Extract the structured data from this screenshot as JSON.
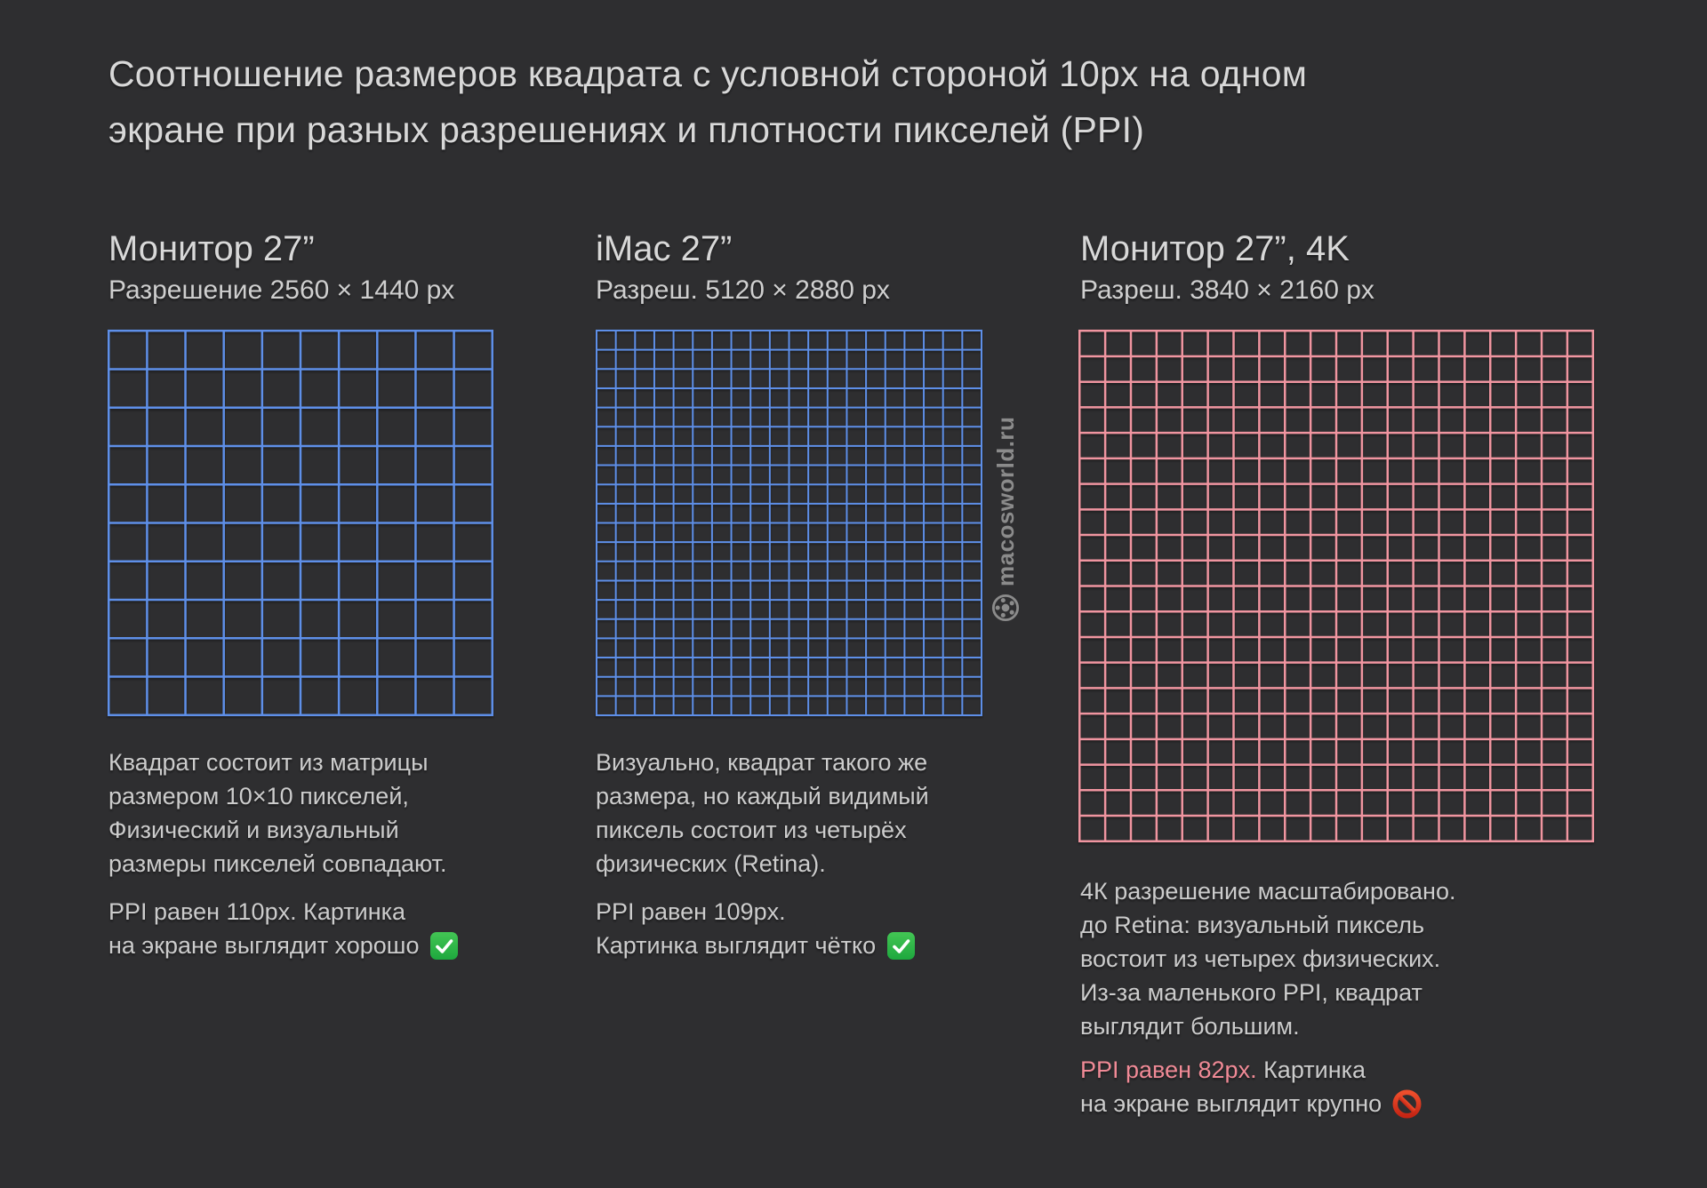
{
  "background_color": "#2e2e30",
  "title": {
    "text": "Соотношение размеров квадрата с условной стороной 10px на одном\nэкране при разных разрешениях и плотности пикселей (PPI)",
    "color": "#d8d8d8"
  },
  "watermark": {
    "text": "macosworld.ru",
    "icon": "soccer-ball-icon",
    "color": "#8b8b8b"
  },
  "text_colors": {
    "heading": "#d8d8d8",
    "body": "#cccccc",
    "ppi_highlight": "#f08a96"
  },
  "columns": [
    {
      "title": "Монитор 27”",
      "subtitle": "Разрешение 2560 × 1440 px",
      "grid": {
        "cols": 10,
        "rows": 10,
        "color": "#5e8fe8",
        "stroke": 2.5
      },
      "description": "Квадрат состоит из матрицы\nразмером 10×10 пикселей,\nФизический и визуальный\nразмеры пикселей совпадают.",
      "ppi_highlight": "",
      "ppi_line1": "PPI равен 110px. Картинка",
      "ppi_line2": "на экране выглядит хорошо",
      "status_icon": "check-icon"
    },
    {
      "title": "iMac 27”",
      "subtitle": "Разреш. 5120 × 2880 px",
      "grid": {
        "cols": 20,
        "rows": 20,
        "color": "#5e8fe8",
        "stroke": 2
      },
      "description": "Визуально, квадрат такого же\nразмера, но каждый видимый\nпиксель состоит из четырёх\nфизических (Retina).",
      "ppi_highlight": "",
      "ppi_line1": "PPI равен 109px.",
      "ppi_line2": "Картинка выглядит чётко",
      "status_icon": "check-icon"
    },
    {
      "title": "Монитор 27”, 4K",
      "subtitle": "Разреш. 3840 × 2160 px",
      "grid": {
        "cols": 20,
        "rows": 20,
        "color": "#f095a0",
        "stroke": 2.5
      },
      "description": "4К разрешение масштабировано.\nдо Retina: визуальный пиксель\nвостоит из четырех физических.\nИз-за маленького PPI, квадрат\nвыглядит большим.",
      "ppi_highlight": "PPI равен 82px.",
      "ppi_line1": " Картинка",
      "ppi_line2": "на экране выглядит крупно",
      "status_icon": "no-entry-icon"
    }
  ]
}
